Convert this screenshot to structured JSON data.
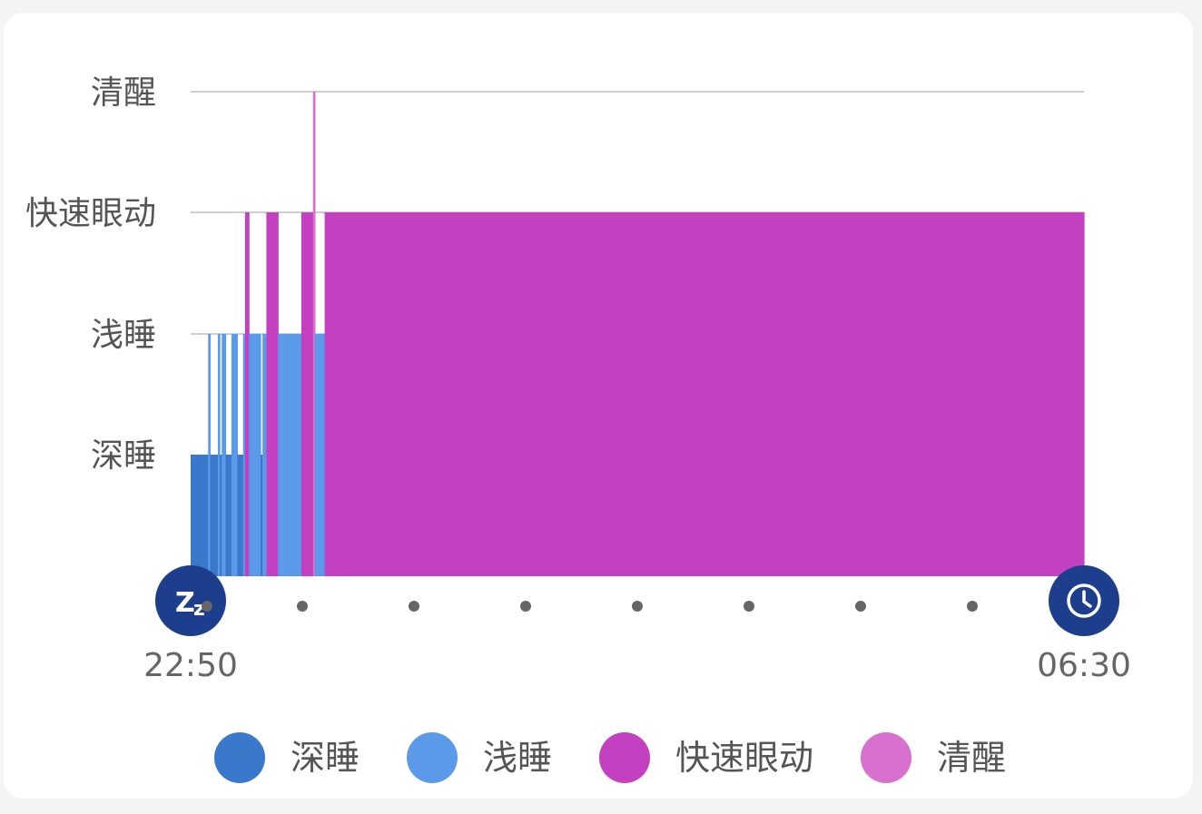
{
  "chart_data": {
    "type": "bar",
    "subtype": "sleep-stage-timeline",
    "stages": [
      "深睡",
      "浅睡",
      "快速眼动",
      "清醒"
    ],
    "colors": {
      "深睡": "#3a78cc",
      "浅睡": "#5a9ae9",
      "快速眼动": "#c340c0",
      "清醒": "#d870cf"
    },
    "time_range": {
      "start": "22:50",
      "end": "06:30"
    },
    "start_icon": "sleep-zz-icon",
    "end_icon": "alarm-clock-icon",
    "intermediate_tick_count": 7,
    "segments": [
      {
        "stage": "深睡",
        "start": "22:50",
        "end": "22:59"
      },
      {
        "stage": "浅睡",
        "start": "22:59",
        "end": "23:00"
      },
      {
        "stage": "深睡",
        "start": "23:00",
        "end": "23:04"
      },
      {
        "stage": "浅睡",
        "start": "23:04",
        "end": "23:05"
      },
      {
        "stage": "深睡",
        "start": "23:05",
        "end": "23:06"
      },
      {
        "stage": "浅睡",
        "start": "23:06",
        "end": "23:08"
      },
      {
        "stage": "深睡",
        "start": "23:08",
        "end": "23:11"
      },
      {
        "stage": "浅睡",
        "start": "23:11",
        "end": "23:14"
      },
      {
        "stage": "深睡",
        "start": "23:14",
        "end": "23:17"
      },
      {
        "stage": "浅睡",
        "start": "23:17",
        "end": "23:18"
      },
      {
        "stage": "快速眼动",
        "start": "23:18",
        "end": "23:20"
      },
      {
        "stage": "浅睡",
        "start": "23:20",
        "end": "23:26"
      },
      {
        "stage": "深睡",
        "start": "23:26",
        "end": "23:27"
      },
      {
        "stage": "浅睡",
        "start": "23:27",
        "end": "23:29"
      },
      {
        "stage": "快速眼动",
        "start": "23:29",
        "end": "23:35"
      },
      {
        "stage": "浅睡",
        "start": "23:35",
        "end": "23:47"
      },
      {
        "stage": "快速眼动",
        "start": "23:47",
        "end": "23:53"
      },
      {
        "stage": "清醒",
        "start": "23:53",
        "end": "23:54"
      },
      {
        "stage": "浅睡",
        "start": "23:54",
        "end": "23:59"
      },
      {
        "stage": "快速眼动",
        "start": "23:59",
        "end": "06:30"
      }
    ],
    "legend": {
      "placement": "bottom",
      "entries": [
        "深睡",
        "浅睡",
        "快速眼动",
        "清醒"
      ]
    }
  }
}
